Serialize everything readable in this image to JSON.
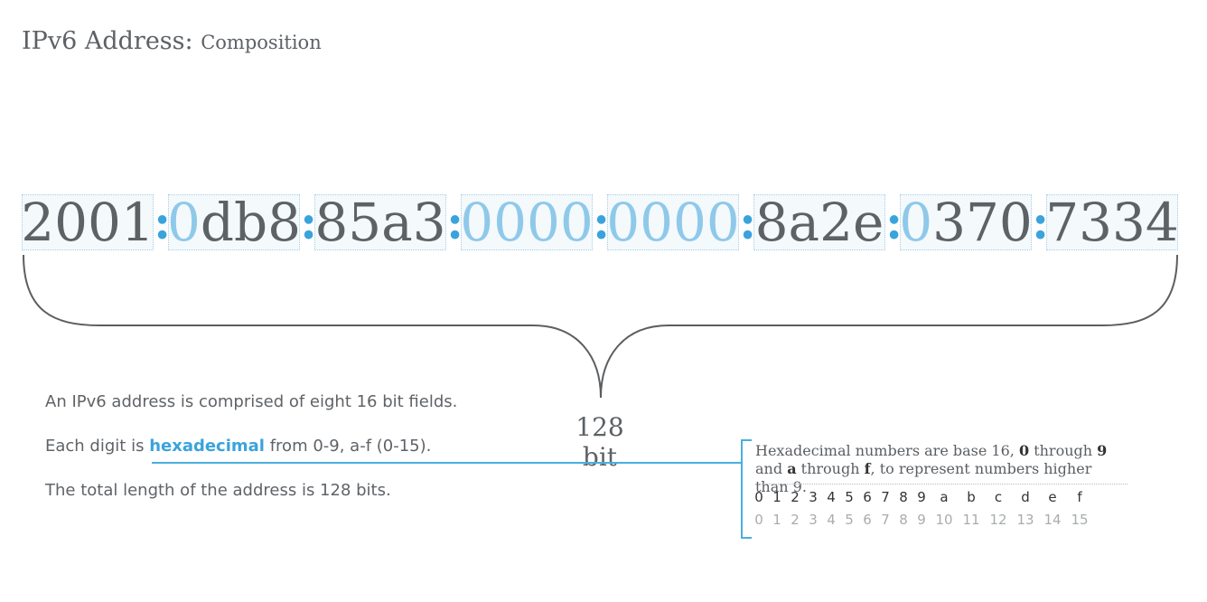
{
  "title": {
    "main": "IPv6 Address:",
    "sub": "Composition"
  },
  "address": {
    "groups": [
      "2001",
      "0db8",
      "85a3",
      "0000",
      "0000",
      "8a2e",
      "0370",
      "7334"
    ],
    "separator": ":",
    "colors": {
      "digit": "#5d6267",
      "leading_zero": "#8fc9ea",
      "separator": "#3aa3dc",
      "field_box": "#a8cfe6"
    }
  },
  "total_bits_label": "128 bit",
  "description": {
    "line1": "An IPv6 address is comprised of eight 16 bit fields.",
    "line2_before": "Each digit is",
    "line2_term": "hexadecimal",
    "line2_after": "from 0-9, a-f (0-15).",
    "line3": "The total length of the address is 128 bits."
  },
  "note": {
    "text1": "Hexadecimal numbers are base 16,",
    "b1": "0",
    "text2": "through",
    "b2": "9",
    "text3": "and",
    "b3": "a",
    "text4": "through",
    "b4": "f",
    "text5": ", to represent numbers higher than 9."
  },
  "hex_table": {
    "hex": [
      "0",
      "1",
      "2",
      "3",
      "4",
      "5",
      "6",
      "7",
      "8",
      "9",
      "a",
      "b",
      "c",
      "d",
      "e",
      "f"
    ],
    "dec": [
      "0",
      "1",
      "2",
      "3",
      "4",
      "5",
      "6",
      "7",
      "8",
      "9",
      "10",
      "11",
      "12",
      "13",
      "14",
      "15"
    ]
  },
  "accent_color": "#3aa3dc"
}
